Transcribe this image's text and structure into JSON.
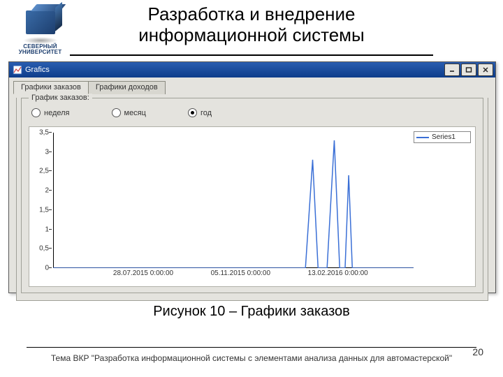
{
  "logo": {
    "name": "СЕВЕРНЫЙ",
    "sub": "УНИВЕРСИТЕТ",
    "cube_color_light": "#5a8cc8",
    "cube_color_dark": "#1d3e6e"
  },
  "title_line1": "Разработка и внедрение",
  "title_line2": "информационной системы",
  "window": {
    "title": "Grafics",
    "tabs": [
      {
        "label": "Графики заказов",
        "active": true
      },
      {
        "label": "Графики доходов",
        "active": false
      }
    ],
    "groupbox_label": "График заказов:",
    "radios": [
      {
        "label": "неделя",
        "checked": false
      },
      {
        "label": "месяц",
        "checked": false
      },
      {
        "label": "год",
        "checked": true
      }
    ]
  },
  "chart": {
    "type": "line",
    "legend_label": "Series1",
    "series_color": "#3a6fd6",
    "background_color": "#ffffff",
    "axis_color": "#000000",
    "ylim": [
      0,
      3.5
    ],
    "ytick_step": 0.5,
    "y_ticks": [
      "0",
      "0,5",
      "1",
      "1,5",
      "2",
      "2,5",
      "3",
      "3,5"
    ],
    "x_ticks": [
      {
        "label": "28.07.2015 0:00:00",
        "pos": 0.25
      },
      {
        "label": "05.11.2015 0:00:00",
        "pos": 0.52
      },
      {
        "label": "13.02.2016 0:00:00",
        "pos": 0.79
      }
    ],
    "points": [
      [
        0.0,
        0.0
      ],
      [
        0.7,
        0.0
      ],
      [
        0.72,
        2.8
      ],
      [
        0.735,
        0.0
      ],
      [
        0.76,
        0.0
      ],
      [
        0.78,
        3.3
      ],
      [
        0.795,
        0.0
      ],
      [
        0.81,
        0.0
      ],
      [
        0.82,
        2.4
      ],
      [
        0.83,
        0.0
      ],
      [
        1.0,
        0.0
      ]
    ],
    "line_width": 1.5
  },
  "caption": "Рисунок 10 – Графики заказов",
  "footer": "Тема ВКР \"Разработка информационной системы с элементами анализа данных для автомастерской\"",
  "page_number": "20"
}
